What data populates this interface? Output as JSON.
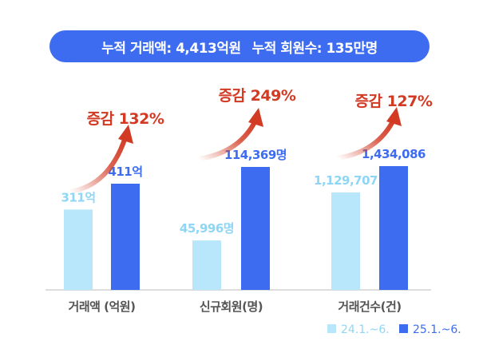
{
  "banner": {
    "total_amount": "누적 거래액: 4,413억원",
    "total_members": "누적 회원수: 135만명"
  },
  "chart_data": {
    "type": "bar",
    "categories": [
      "거래액 (억원)",
      "신규회원(명)",
      "거래건수(건)"
    ],
    "series": [
      {
        "name": "24.1.~6.",
        "values": [
          311,
          45996,
          1129707
        ],
        "labels": [
          "311억",
          "45,996명",
          "1,129,707"
        ],
        "color": "#b8e6fb",
        "label_color": "#8fd6f5"
      },
      {
        "name": "25.1.~6.",
        "values": [
          411,
          114369,
          1434086
        ],
        "labels": [
          "411억",
          "114,369명",
          "1,434,086"
        ],
        "color": "#3e6cf1",
        "label_color": "#3e6cf1"
      }
    ],
    "annotations": [
      "증감 132%",
      "증감 249%",
      "증감 127%"
    ],
    "annotation_color": "#d23a24",
    "legend": "bottom-right",
    "grid": false,
    "axis_color": "#bbbbbb"
  }
}
